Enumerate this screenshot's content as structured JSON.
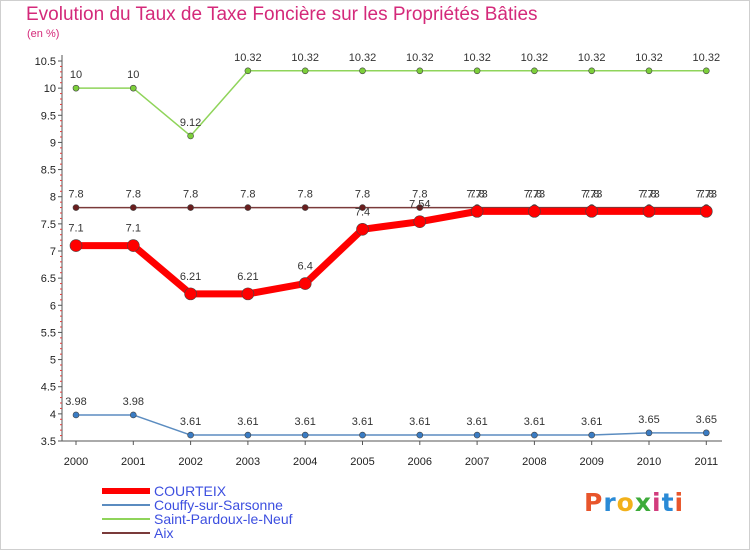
{
  "title": "Evolution du Taux de Taxe Foncière sur les Propriétés Bâties",
  "unit_label": "(en %)",
  "logo_text": "Proxiti",
  "logo_colors": [
    "#e8552b",
    "#2a8ad6",
    "#f2b11b",
    "#3dab3a",
    "#d23c7d",
    "#2a8ad6",
    "#e8552b"
  ],
  "chart_data": {
    "type": "line",
    "title": "Evolution du Taux de Taxe Foncière sur les Propriétés Bâties",
    "ylabel": "(en %)",
    "xlabel": "",
    "categories": [
      "2000",
      "2001",
      "2002",
      "2003",
      "2004",
      "2005",
      "2006",
      "2007",
      "2008",
      "2009",
      "2010",
      "2011"
    ],
    "ylim": [
      3.5,
      10.5
    ],
    "yticks": [
      "3.5",
      "4",
      "4.5",
      "5",
      "5.5",
      "6",
      "6.5",
      "7",
      "7.5",
      "8",
      "8.5",
      "9",
      "9.5",
      "10",
      "10.5"
    ],
    "grid": false,
    "legend_position": "bottom-left",
    "series": [
      {
        "name": "Aix",
        "color": "#7a3a3a",
        "values": [
          7.8,
          7.8,
          7.8,
          7.8,
          7.8,
          7.8,
          7.8,
          7.8,
          7.8,
          7.8,
          7.8,
          7.8
        ],
        "labels": [
          "7.8",
          "7.8",
          "7.8",
          "7.8",
          "7.8",
          "7.8",
          "7.8",
          "7.8",
          "7.8",
          "7.8",
          "7.8",
          "7.8"
        ]
      },
      {
        "name": "Saint-Pardoux-le-Neuf",
        "color": "#8fd45a",
        "values": [
          10,
          10,
          9.12,
          10.32,
          10.32,
          10.32,
          10.32,
          10.32,
          10.32,
          10.32,
          10.32,
          10.32
        ],
        "labels": [
          "10",
          "10",
          "9.12",
          "10.32",
          "10.32",
          "10.32",
          "10.32",
          "10.32",
          "10.32",
          "10.32",
          "10.32",
          "10.32"
        ]
      },
      {
        "name": "Couffy-sur-Sarsonne",
        "color": "#5b8cc0",
        "values": [
          3.98,
          3.98,
          3.61,
          3.61,
          3.61,
          3.61,
          3.61,
          3.61,
          3.61,
          3.61,
          3.65,
          3.65
        ],
        "labels": [
          "3.98",
          "3.98",
          "3.61",
          "3.61",
          "3.61",
          "3.61",
          "3.61",
          "3.61",
          "3.61",
          "3.61",
          "3.65",
          "3.65"
        ]
      },
      {
        "name": "COURTEIX",
        "color": "#ff0000",
        "values": [
          7.1,
          7.1,
          6.21,
          6.21,
          6.4,
          7.4,
          7.54,
          7.73,
          7.73,
          7.73,
          7.73,
          7.73
        ],
        "labels": [
          "7.1",
          "7.1",
          "6.21",
          "6.21",
          "6.4",
          "7.4",
          "7.54",
          "7.73",
          "7.73",
          "7.73",
          "7.73",
          "7.73"
        ]
      }
    ],
    "legend": [
      {
        "name": "COURTEIX",
        "color": "#ff0000"
      },
      {
        "name": "Couffy-sur-Sarsonne",
        "color": "#5b8cc0"
      },
      {
        "name": "Saint-Pardoux-le-Neuf",
        "color": "#8fd45a"
      },
      {
        "name": "Aix",
        "color": "#7a3a3a"
      }
    ]
  }
}
